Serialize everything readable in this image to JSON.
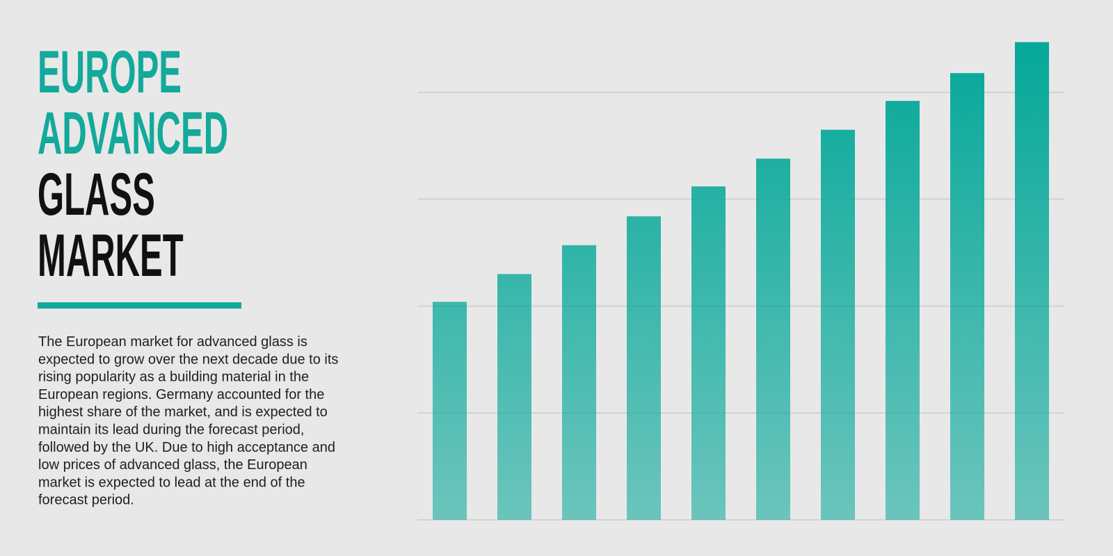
{
  "chart_data": {
    "type": "bar",
    "title_lines": [
      {
        "text": "EUROPE",
        "color": "#13a99b"
      },
      {
        "text": "ADVANCED",
        "color": "#13a99b"
      },
      {
        "text": "GLASS",
        "color": "#111111"
      },
      {
        "text": "MARKET",
        "color": "#111111"
      }
    ],
    "description_lines": [
      "The European market for advanced glass is",
      "expected to grow over the next decade due to its",
      "rising popularity as a building material in the",
      "European regions. Germany accounted for the",
      "highest share of the market, and is expected to",
      "maintain its lead during the forecast period,",
      "followed by the UK. Due to high acceptance and",
      "low prices of advanced glass, the European",
      "market is expected to lead at the end of the",
      "forecast period."
    ],
    "categories": [
      null,
      null,
      null,
      null,
      null,
      null,
      null,
      null,
      null,
      null
    ],
    "values": [
      2.04,
      2.3,
      2.57,
      2.84,
      3.12,
      3.38,
      3.65,
      3.92,
      4.18,
      4.47
    ],
    "color": "#05a899",
    "ylim": [
      0,
      4.5
    ],
    "yticks": [
      0,
      1,
      2,
      3,
      4
    ],
    "grid": true
  }
}
